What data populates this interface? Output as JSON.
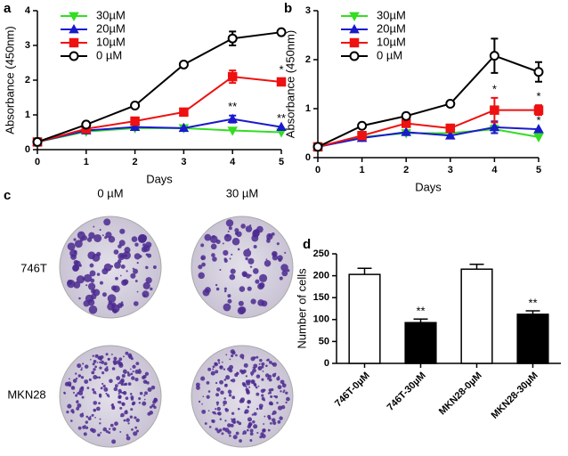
{
  "chart_data": [
    {
      "type": "line",
      "panel": "a",
      "x_label": "Days",
      "y_label": "Absorbance (450nm)",
      "x": [
        0,
        1,
        2,
        3,
        4,
        5
      ],
      "xlim": [
        0,
        5
      ],
      "xticks": [
        0,
        1,
        2,
        3,
        4,
        5
      ],
      "ylim": [
        0,
        4
      ],
      "yticks": [
        0,
        1,
        2,
        3,
        4
      ],
      "series": [
        {
          "name": "30µM",
          "color": "#33dd22",
          "marker": "triangle-down",
          "values": [
            0.22,
            0.52,
            0.62,
            0.62,
            0.55,
            0.5
          ],
          "errors": [
            null,
            null,
            null,
            null,
            null,
            null
          ],
          "annotations": [
            null,
            null,
            null,
            null,
            null,
            null
          ]
        },
        {
          "name": "20µM",
          "color": "#1a1acc",
          "marker": "triangle-up",
          "values": [
            0.22,
            0.55,
            0.65,
            0.62,
            0.88,
            0.65
          ],
          "errors": [
            null,
            null,
            null,
            null,
            0.1,
            null
          ],
          "annotations": [
            null,
            null,
            null,
            null,
            "**",
            "**"
          ]
        },
        {
          "name": "10µM",
          "color": "#ee1111",
          "marker": "square",
          "values": [
            0.22,
            0.6,
            0.82,
            1.08,
            2.1,
            1.95
          ],
          "errors": [
            null,
            null,
            null,
            null,
            0.18,
            0.1
          ],
          "annotations": [
            null,
            null,
            null,
            null,
            null,
            "*"
          ]
        },
        {
          "name": "0 µM",
          "color": "#000000",
          "marker": "circle",
          "values": [
            0.22,
            0.72,
            1.27,
            2.45,
            3.2,
            3.38
          ],
          "errors": [
            null,
            null,
            null,
            null,
            0.2,
            0.05
          ],
          "annotations": [
            null,
            null,
            null,
            null,
            null,
            null
          ]
        }
      ]
    },
    {
      "type": "line",
      "panel": "b",
      "x_label": "Days",
      "y_label": "Absorbance (450nm)",
      "x": [
        0,
        1,
        2,
        3,
        4,
        5
      ],
      "xlim": [
        0,
        5
      ],
      "xticks": [
        0,
        1,
        2,
        3,
        4,
        5
      ],
      "ylim": [
        0,
        3
      ],
      "yticks": [
        0,
        1,
        2,
        3
      ],
      "series": [
        {
          "name": "30µM",
          "color": "#33dd22",
          "marker": "triangle-down",
          "values": [
            0.22,
            0.42,
            0.5,
            0.5,
            0.58,
            0.42
          ],
          "errors": [
            null,
            null,
            null,
            null,
            0.08,
            null
          ],
          "annotations": [
            null,
            null,
            null,
            null,
            null,
            null
          ]
        },
        {
          "name": "20µM",
          "color": "#1a1acc",
          "marker": "triangle-up",
          "values": [
            0.22,
            0.4,
            0.52,
            0.45,
            0.62,
            0.58
          ],
          "errors": [
            null,
            null,
            null,
            null,
            0.12,
            null
          ],
          "annotations": [
            null,
            null,
            null,
            null,
            "*",
            "*"
          ]
        },
        {
          "name": "10µM",
          "color": "#ee1111",
          "marker": "square",
          "values": [
            0.22,
            0.45,
            0.7,
            0.6,
            0.97,
            0.97
          ],
          "errors": [
            null,
            null,
            null,
            null,
            0.25,
            0.1
          ],
          "annotations": [
            null,
            null,
            null,
            null,
            "*",
            "*"
          ]
        },
        {
          "name": "0 µM",
          "color": "#000000",
          "marker": "circle",
          "values": [
            0.22,
            0.65,
            0.85,
            1.1,
            2.08,
            1.75
          ],
          "errors": [
            null,
            null,
            null,
            null,
            0.35,
            0.2
          ],
          "annotations": [
            null,
            null,
            null,
            null,
            null,
            null
          ]
        }
      ]
    },
    {
      "type": "bar",
      "panel": "d",
      "y_label": "Number of cells",
      "categories": [
        "746T-0µM",
        "746T-30µM",
        "MKN28-0µM",
        "MKN28-30µM"
      ],
      "values": [
        203,
        93,
        215,
        112
      ],
      "errors": [
        14,
        8,
        11,
        8
      ],
      "colors": [
        "#ffffff",
        "#000000",
        "#ffffff",
        "#000000"
      ],
      "annotations": [
        null,
        "**",
        null,
        "**"
      ],
      "ylim": [
        0,
        250
      ],
      "yticks": [
        0,
        50,
        100,
        150,
        200,
        250
      ]
    }
  ],
  "panel_c": {
    "label": "c",
    "columns": [
      "0 µM",
      "30 µM"
    ],
    "rows": [
      "746T",
      "MKN28"
    ]
  }
}
